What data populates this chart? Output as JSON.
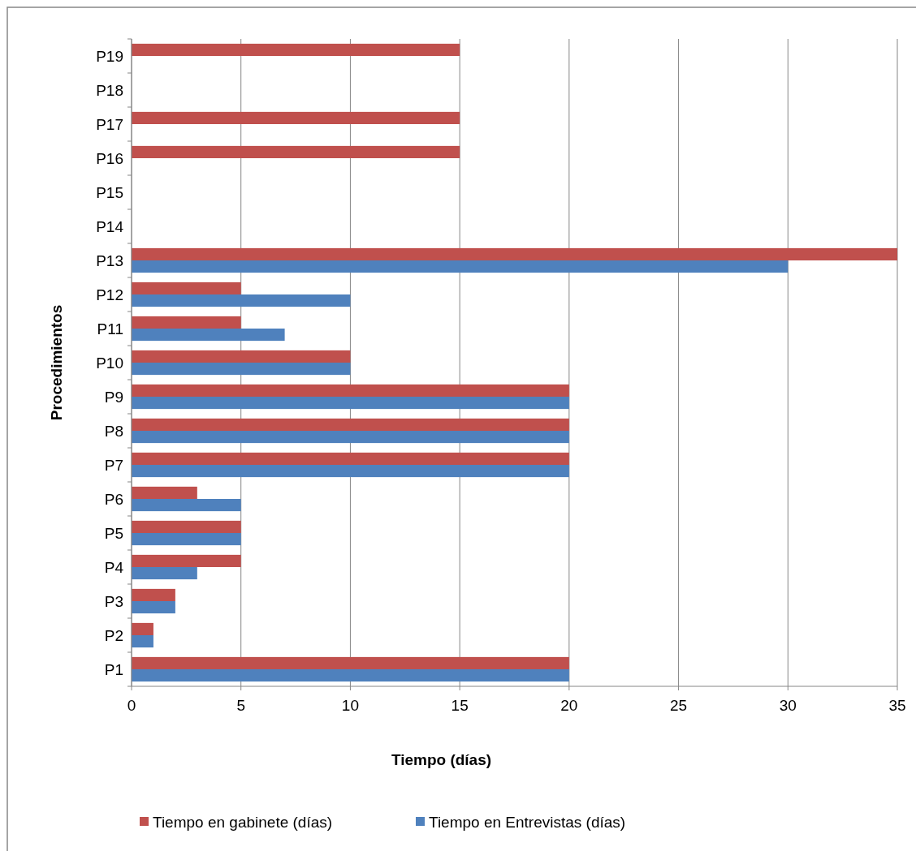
{
  "chart_data": {
    "type": "bar",
    "orientation": "horizontal",
    "xlabel": "Tiempo (días)",
    "ylabel": "Procedimientos",
    "categories": [
      "P19",
      "P18",
      "P17",
      "P16",
      "P15",
      "P14",
      "P13",
      "P12",
      "P11",
      "P10",
      "P9",
      "P8",
      "P7",
      "P6",
      "P5",
      "P4",
      "P3",
      "P2",
      "P1"
    ],
    "series": [
      {
        "name": "Tiempo en gabinete (días)",
        "color": "#c0504d",
        "values": [
          15,
          null,
          15,
          15,
          null,
          null,
          35,
          5,
          5,
          10,
          20,
          20,
          20,
          3,
          5,
          5,
          2,
          1,
          20
        ]
      },
      {
        "name": "Tiempo en Entrevistas (días)",
        "color": "#4f81bd",
        "values": [
          null,
          null,
          null,
          null,
          null,
          null,
          30,
          10,
          7,
          10,
          20,
          20,
          20,
          5,
          5,
          3,
          2,
          1,
          20
        ]
      }
    ],
    "xlim": [
      0,
      35
    ],
    "xticks": [
      0,
      5,
      10,
      15,
      20,
      25,
      30,
      35
    ],
    "grid": "x",
    "legend": "bottom"
  }
}
